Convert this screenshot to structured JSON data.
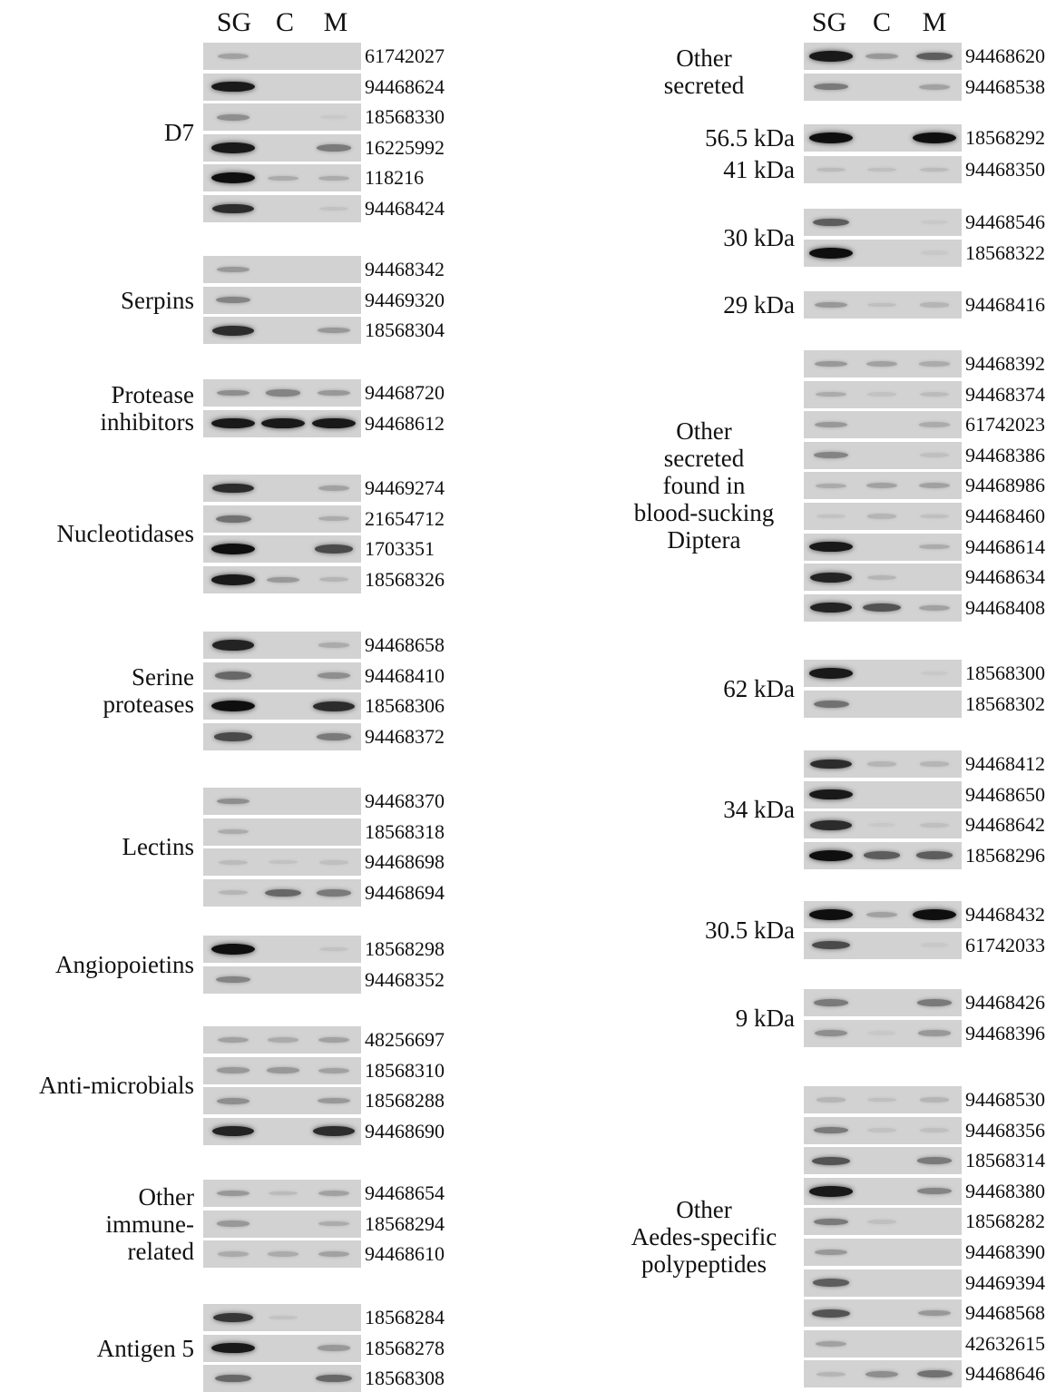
{
  "lane_labels": [
    "SG",
    "C",
    "M"
  ],
  "colors": {
    "gel_background": "#d2d2d2",
    "band": "#111111"
  },
  "left_groups": [
    {
      "name": "D7",
      "rows": [
        {
          "id": "61742027",
          "bands": [
            0.25,
            0,
            0
          ]
        },
        {
          "id": "94468624",
          "bands": [
            0.95,
            0,
            0
          ]
        },
        {
          "id": "18568330",
          "bands": [
            0.35,
            0,
            0.05
          ]
        },
        {
          "id": "16225992",
          "bands": [
            0.95,
            0,
            0.45
          ]
        },
        {
          "id": "118216",
          "bands": [
            1.0,
            0.2,
            0.2
          ]
        },
        {
          "id": "94468424",
          "bands": [
            0.85,
            0,
            0.08
          ]
        }
      ]
    },
    {
      "name": "Serpins",
      "rows": [
        {
          "id": "94468342",
          "bands": [
            0.3,
            0,
            0
          ]
        },
        {
          "id": "94469320",
          "bands": [
            0.4,
            0,
            0
          ]
        },
        {
          "id": "18568304",
          "bands": [
            0.85,
            0,
            0.3
          ]
        }
      ]
    },
    {
      "name": "Protease\ninhibitors",
      "rows": [
        {
          "id": "94468720",
          "bands": [
            0.35,
            0.4,
            0.3
          ]
        },
        {
          "id": "94468612",
          "bands": [
            0.95,
            0.95,
            0.95
          ]
        }
      ]
    },
    {
      "name": "Nucleotidases",
      "rows": [
        {
          "id": "94469274",
          "bands": [
            0.85,
            0,
            0.25
          ]
        },
        {
          "id": "21654712",
          "bands": [
            0.5,
            0,
            0.2
          ]
        },
        {
          "id": "1703351",
          "bands": [
            1.0,
            0,
            0.7
          ]
        },
        {
          "id": "18568326",
          "bands": [
            0.95,
            0.3,
            0.15
          ]
        }
      ]
    },
    {
      "name": "Serine\nproteases",
      "rows": [
        {
          "id": "94468658",
          "bands": [
            0.9,
            0,
            0.2
          ]
        },
        {
          "id": "94468410",
          "bands": [
            0.55,
            0,
            0.35
          ]
        },
        {
          "id": "18568306",
          "bands": [
            1.0,
            0,
            0.85
          ]
        },
        {
          "id": "94468372",
          "bands": [
            0.7,
            0,
            0.45
          ]
        }
      ]
    },
    {
      "name": "Lectins",
      "rows": [
        {
          "id": "94468370",
          "bands": [
            0.35,
            0,
            0
          ]
        },
        {
          "id": "18568318",
          "bands": [
            0.2,
            0,
            0
          ]
        },
        {
          "id": "94468698",
          "bands": [
            0.12,
            0.08,
            0.1
          ]
        },
        {
          "id": "94468694",
          "bands": [
            0.15,
            0.55,
            0.45
          ]
        }
      ]
    },
    {
      "name": "Angiopoietins",
      "rows": [
        {
          "id": "18568298",
          "bands": [
            1.0,
            0,
            0.08
          ]
        },
        {
          "id": "94468352",
          "bands": [
            0.4,
            0,
            0
          ]
        }
      ]
    },
    {
      "name": "Anti-microbials",
      "rows": [
        {
          "id": "48256697",
          "bands": [
            0.25,
            0.2,
            0.25
          ]
        },
        {
          "id": "18568310",
          "bands": [
            0.3,
            0.3,
            0.25
          ]
        },
        {
          "id": "18568288",
          "bands": [
            0.35,
            0,
            0.3
          ]
        },
        {
          "id": "94468690",
          "bands": [
            0.9,
            0,
            0.85
          ]
        }
      ]
    },
    {
      "name": "Other\nimmune-\nrelated",
      "rows": [
        {
          "id": "94468654",
          "bands": [
            0.3,
            0.12,
            0.25
          ]
        },
        {
          "id": "18568294",
          "bands": [
            0.3,
            0,
            0.2
          ]
        },
        {
          "id": "94468610",
          "bands": [
            0.2,
            0.2,
            0.25
          ]
        }
      ]
    },
    {
      "name": "Antigen 5",
      "rows": [
        {
          "id": "18568284",
          "bands": [
            0.8,
            0.08,
            0
          ]
        },
        {
          "id": "18568278",
          "bands": [
            0.95,
            0,
            0.3
          ]
        },
        {
          "id": "18568308",
          "bands": [
            0.55,
            0,
            0.55
          ]
        }
      ]
    }
  ],
  "right_groups": [
    {
      "name": "Other\nsecreted",
      "rows": [
        {
          "id": "94468620",
          "bands": [
            0.95,
            0.3,
            0.6
          ]
        },
        {
          "id": "94468538",
          "bands": [
            0.45,
            0,
            0.25
          ]
        }
      ]
    },
    {
      "name": "56.5 kDa",
      "rows": [
        {
          "id": "18568292",
          "bands": [
            1.0,
            0,
            1.0
          ]
        }
      ]
    },
    {
      "name": "41 kDa",
      "rows": [
        {
          "id": "94468350",
          "bands": [
            0.12,
            0.1,
            0.12
          ]
        }
      ]
    },
    {
      "name": "30 kDa",
      "rows": [
        {
          "id": "94468546",
          "bands": [
            0.6,
            0,
            0.05
          ]
        },
        {
          "id": "18568322",
          "bands": [
            1.0,
            0,
            0.05
          ]
        }
      ]
    },
    {
      "name": "29 kDa",
      "rows": [
        {
          "id": "94468416",
          "bands": [
            0.3,
            0.1,
            0.15
          ]
        }
      ]
    },
    {
      "name": "Other\nsecreted\nfound in\nblood-sucking\nDiptera",
      "rows": [
        {
          "id": "94468392",
          "bands": [
            0.3,
            0.25,
            0.2
          ]
        },
        {
          "id": "94468374",
          "bands": [
            0.2,
            0.08,
            0.12
          ]
        },
        {
          "id": "61742023",
          "bands": [
            0.3,
            0,
            0.2
          ]
        },
        {
          "id": "94468386",
          "bands": [
            0.4,
            0,
            0.1
          ]
        },
        {
          "id": "94468986",
          "bands": [
            0.2,
            0.25,
            0.25
          ]
        },
        {
          "id": "94468460",
          "bands": [
            0.08,
            0.15,
            0.1
          ]
        },
        {
          "id": "94468614",
          "bands": [
            0.95,
            0,
            0.2
          ]
        },
        {
          "id": "94468634",
          "bands": [
            0.9,
            0.15,
            0
          ]
        },
        {
          "id": "94468408",
          "bands": [
            0.9,
            0.65,
            0.25
          ]
        }
      ]
    },
    {
      "name": "62 kDa",
      "rows": [
        {
          "id": "18568300",
          "bands": [
            0.95,
            0,
            0.05
          ]
        },
        {
          "id": "18568302",
          "bands": [
            0.5,
            0,
            0
          ]
        }
      ]
    },
    {
      "name": "34 kDa",
      "rows": [
        {
          "id": "94468412",
          "bands": [
            0.85,
            0.15,
            0.15
          ]
        },
        {
          "id": "94468650",
          "bands": [
            0.95,
            0,
            0
          ]
        },
        {
          "id": "94468642",
          "bands": [
            0.85,
            0.05,
            0.1
          ]
        },
        {
          "id": "18568296",
          "bands": [
            1.0,
            0.6,
            0.6
          ]
        }
      ]
    },
    {
      "name": "30.5 kDa",
      "rows": [
        {
          "id": "94468432",
          "bands": [
            1.0,
            0.25,
            1.0
          ]
        },
        {
          "id": "61742033",
          "bands": [
            0.7,
            0,
            0.05
          ]
        }
      ]
    },
    {
      "name": "9 kDa",
      "rows": [
        {
          "id": "94468426",
          "bands": [
            0.45,
            0,
            0.45
          ]
        },
        {
          "id": "94468396",
          "bands": [
            0.35,
            0.05,
            0.3
          ]
        }
      ]
    },
    {
      "name": "Other\nAedes-specific\npolypeptides",
      "rows": [
        {
          "id": "94468530",
          "bands": [
            0.15,
            0.1,
            0.15
          ]
        },
        {
          "id": "94468356",
          "bands": [
            0.45,
            0.08,
            0.1
          ]
        },
        {
          "id": "18568314",
          "bands": [
            0.65,
            0,
            0.45
          ]
        },
        {
          "id": "94468380",
          "bands": [
            0.95,
            0,
            0.4
          ]
        },
        {
          "id": "18568282",
          "bands": [
            0.45,
            0.1,
            0
          ]
        },
        {
          "id": "94468390",
          "bands": [
            0.3,
            0,
            0
          ]
        },
        {
          "id": "94469394",
          "bands": [
            0.6,
            0,
            0
          ]
        },
        {
          "id": "94468568",
          "bands": [
            0.65,
            0,
            0.3
          ]
        },
        {
          "id": "42632615",
          "bands": [
            0.25,
            0,
            0
          ]
        },
        {
          "id": "94468646",
          "bands": [
            0.15,
            0.35,
            0.5
          ]
        }
      ]
    }
  ]
}
